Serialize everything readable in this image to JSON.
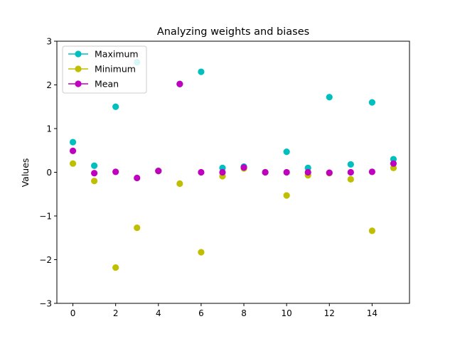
{
  "chart_data": {
    "type": "scatter",
    "title": "Analyzing weights and biases",
    "xlabel": "",
    "ylabel": "Values",
    "xlim": [
      -0.75,
      15.75
    ],
    "ylim": [
      -3,
      3
    ],
    "xticks": [
      0,
      2,
      4,
      6,
      8,
      10,
      12,
      14
    ],
    "xtick_labels": [
      "0",
      "2",
      "4",
      "6",
      "8",
      "10",
      "12",
      "14"
    ],
    "yticks": [
      -3,
      -2,
      -1,
      0,
      1,
      2,
      3
    ],
    "ytick_labels": [
      "−3",
      "−2",
      "−1",
      "0",
      "1",
      "2",
      "3"
    ],
    "legend_position": "top-left",
    "x": [
      0,
      1,
      2,
      3,
      4,
      5,
      6,
      7,
      8,
      9,
      10,
      11,
      12,
      13,
      14,
      15
    ],
    "series": [
      {
        "name": "Maximum",
        "color": "#00bfbf",
        "values": [
          0.69,
          0.15,
          1.5,
          2.52,
          0.03,
          2.02,
          2.3,
          0.1,
          0.13,
          0.0,
          0.47,
          0.1,
          1.72,
          0.18,
          1.6,
          0.3
        ]
      },
      {
        "name": "Minimum",
        "color": "#bfbf00",
        "values": [
          0.2,
          -0.2,
          -2.18,
          -1.27,
          0.03,
          -0.26,
          -1.83,
          -0.09,
          0.09,
          0.0,
          -0.53,
          -0.07,
          -0.02,
          -0.16,
          -1.34,
          0.1
        ]
      },
      {
        "name": "Mean",
        "color": "#bf00bf",
        "values": [
          0.49,
          -0.02,
          0.01,
          -0.13,
          0.03,
          2.02,
          0.0,
          0.0,
          0.11,
          0.0,
          0.0,
          0.0,
          -0.01,
          0.0,
          0.01,
          0.2
        ]
      }
    ]
  }
}
